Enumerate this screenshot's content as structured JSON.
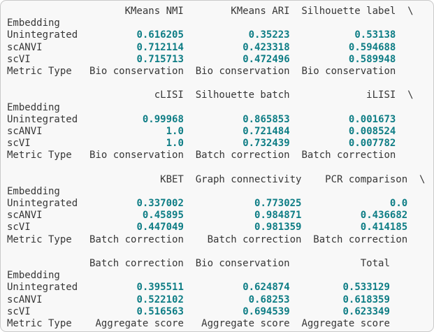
{
  "colors": {
    "background": "#f8f8f8",
    "border": "#c9c9c9",
    "text": "#363636",
    "number": "#0e7d85"
  },
  "table": {
    "index_name": "Embedding",
    "metric_row_label": "Metric Type",
    "row_labels": [
      "Unintegrated",
      "scANVI",
      "scVI"
    ],
    "continuation_marker": "\\",
    "blocks": [
      {
        "continued": true,
        "columns": [
          {
            "header": "KMeans NMI",
            "values": [
              "0.616205",
              "0.712114",
              "0.715713"
            ],
            "metric_type": "Bio conservation"
          },
          {
            "header": "KMeans ARI",
            "values": [
              "0.35223",
              "0.423318",
              "0.472496"
            ],
            "metric_type": "Bio conservation"
          },
          {
            "header": "Silhouette label",
            "values": [
              "0.53138",
              "0.594688",
              "0.589948"
            ],
            "metric_type": "Bio conservation"
          }
        ]
      },
      {
        "continued": true,
        "columns": [
          {
            "header": "cLISI",
            "values": [
              "0.99968",
              "1.0",
              "1.0"
            ],
            "metric_type": "Bio conservation"
          },
          {
            "header": "Silhouette batch",
            "values": [
              "0.865853",
              "0.721484",
              "0.732439"
            ],
            "metric_type": "Batch correction"
          },
          {
            "header": "iLISI",
            "values": [
              "0.001673",
              "0.008524",
              "0.007782"
            ],
            "metric_type": "Batch correction"
          }
        ]
      },
      {
        "continued": true,
        "columns": [
          {
            "header": "KBET",
            "values": [
              "0.337002",
              "0.45895",
              "0.447049"
            ],
            "metric_type": "Batch correction"
          },
          {
            "header": "Graph connectivity",
            "values": [
              "0.773025",
              "0.984871",
              "0.981359"
            ],
            "metric_type": "Batch correction"
          },
          {
            "header": "PCR comparison",
            "values": [
              "0.0",
              "0.436682",
              "0.414185"
            ],
            "metric_type": "Batch correction"
          }
        ]
      },
      {
        "continued": false,
        "columns": [
          {
            "header": "Batch correction",
            "values": [
              "0.395511",
              "0.522102",
              "0.516563"
            ],
            "metric_type": "Aggregate score"
          },
          {
            "header": "Bio conservation",
            "values": [
              "0.624874",
              "0.68253",
              "0.694539"
            ],
            "metric_type": "Aggregate score"
          },
          {
            "header": "Total",
            "values": [
              "0.533129",
              "0.618359",
              "0.623349"
            ],
            "metric_type": "Aggregate score"
          }
        ]
      }
    ]
  }
}
